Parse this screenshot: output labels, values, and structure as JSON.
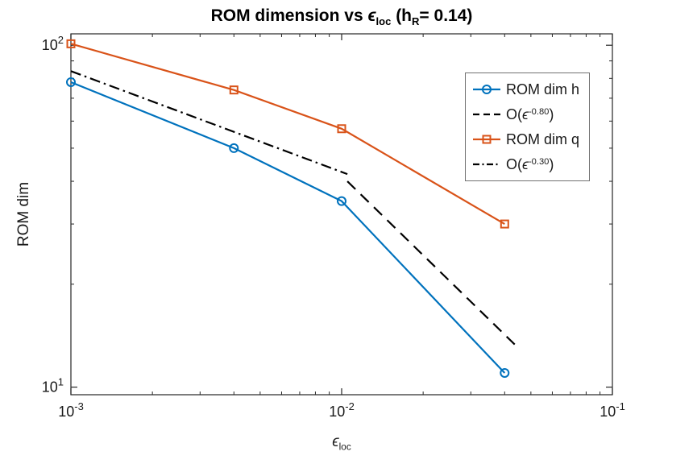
{
  "title": {
    "parts": [
      {
        "t": "ROM dimension vs "
      },
      {
        "t": "ϵ",
        "italic": true
      },
      {
        "t": "loc",
        "sub": true
      },
      {
        "t": " (h"
      },
      {
        "t": "R",
        "sub": true
      },
      {
        "t": "= 0.14)"
      }
    ],
    "plain": "ROM dimension vs ϵ_loc (h_R= 0.14)"
  },
  "chart_data": {
    "type": "line",
    "title": "ROM dimension vs ϵ_loc (h_R= 0.14)",
    "xlabel": "ϵ_loc",
    "ylabel": "ROM dim",
    "xlabel_parts": [
      {
        "t": "ϵ",
        "italic": true
      },
      {
        "t": "loc",
        "sub": true
      }
    ],
    "x_scale": "log",
    "y_scale": "log",
    "xlim": [
      0.001,
      0.1
    ],
    "ylim": [
      9.5,
      108
    ],
    "grid": false,
    "legend_position": "upper right inside",
    "x_ticks": [
      {
        "value": 0.001,
        "base": "10",
        "exp": "-3"
      },
      {
        "value": 0.01,
        "base": "10",
        "exp": "-2"
      },
      {
        "value": 0.1,
        "base": "10",
        "exp": "-1"
      }
    ],
    "y_ticks": [
      {
        "value": 10,
        "base": "10",
        "exp": "1"
      },
      {
        "value": 100,
        "base": "10",
        "exp": "2"
      }
    ],
    "series": [
      {
        "name": "ROM dim h",
        "label_parts": [
          {
            "t": "ROM dim h"
          }
        ],
        "x": [
          0.001,
          0.004,
          0.01,
          0.04
        ],
        "y": [
          78,
          50,
          35,
          11
        ],
        "color": "#0072BD",
        "marker": "circle",
        "dash": "solid"
      },
      {
        "name": "O(ϵ^-0.80)",
        "label_parts": [
          {
            "t": "O("
          },
          {
            "t": "ϵ",
            "italic": true
          },
          {
            "t": "-0.80",
            "sup": true
          },
          {
            "t": ")"
          }
        ],
        "x": [
          0.0105,
          0.045
        ],
        "y": [
          40,
          13
        ],
        "color": "#000000",
        "marker": "none",
        "dash": "dashed"
      },
      {
        "name": "ROM dim q",
        "label_parts": [
          {
            "t": "ROM dim q"
          }
        ],
        "x": [
          0.001,
          0.004,
          0.01,
          0.04
        ],
        "y": [
          101,
          74,
          57,
          30
        ],
        "color": "#D95319",
        "marker": "square",
        "dash": "solid"
      },
      {
        "name": "O(ϵ^-0.30)",
        "label_parts": [
          {
            "t": "O("
          },
          {
            "t": "ϵ",
            "italic": true
          },
          {
            "t": "-0.30",
            "sup": true
          },
          {
            "t": ")"
          }
        ],
        "x": [
          0.001,
          0.0105
        ],
        "y": [
          84,
          42
        ],
        "color": "#000000",
        "marker": "none",
        "dash": "dashdot"
      }
    ]
  },
  "colors": {
    "axis": "#262626",
    "background": "#ffffff",
    "legend_border": "#707070",
    "blue": "#0072BD",
    "orange": "#D95319"
  }
}
